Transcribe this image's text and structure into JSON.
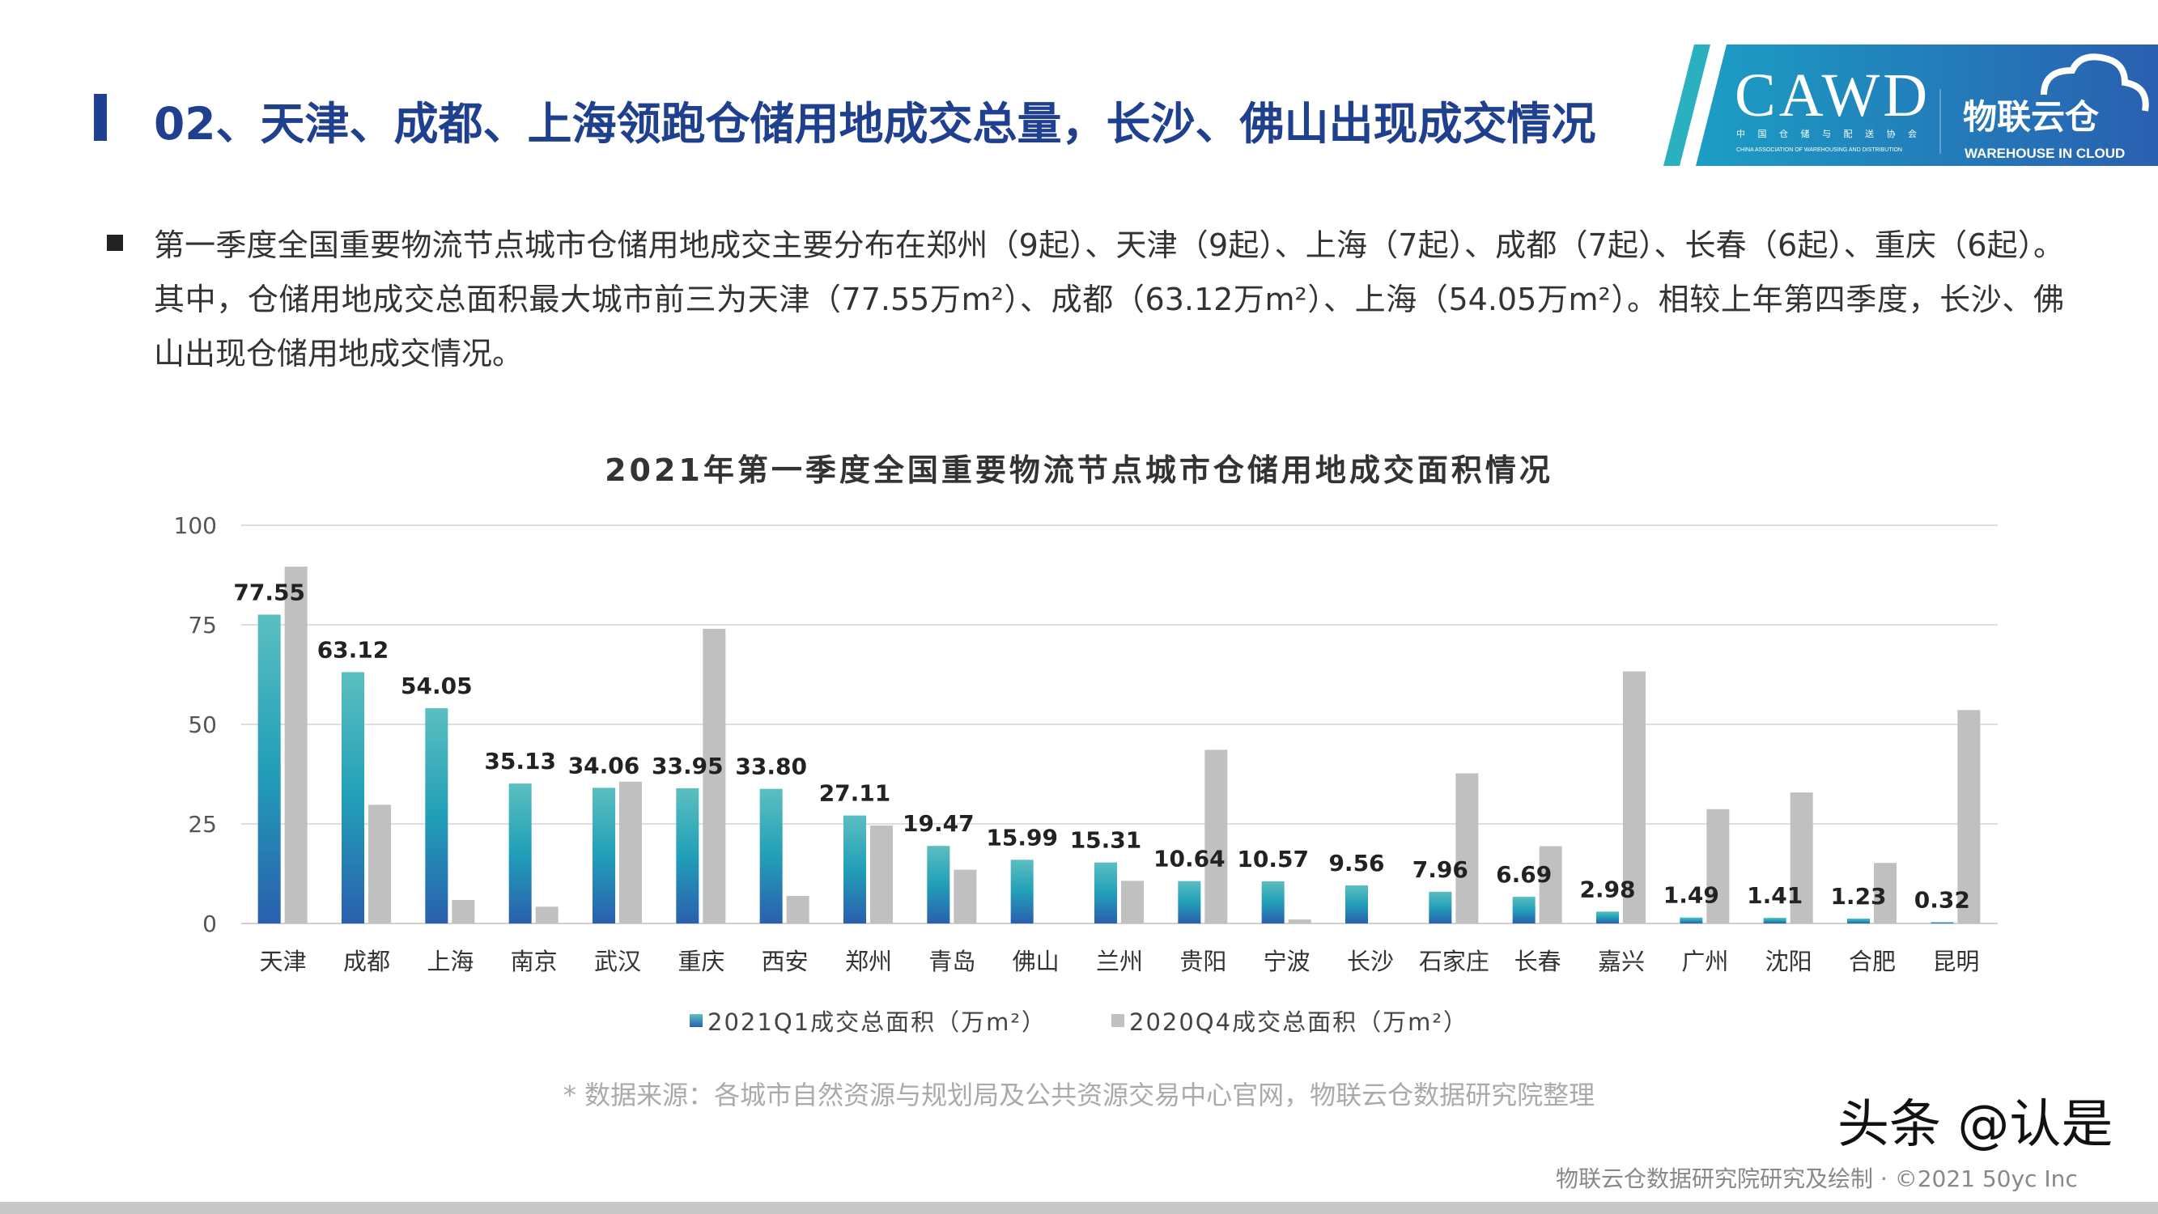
{
  "header": {
    "title": "02、天津、成都、上海领跑仓储用地成交总量，长沙、佛山出现成交情况",
    "title_color": "#1f3f8f",
    "logo": {
      "cawd": "CAWD",
      "cawd_cn": "中 国 仓 储 与 配 送 协 会",
      "cawd_en": "CHINA ASSOCIATION OF WAREHOUSING AND DISTRIBUTION",
      "wic_cn": "物联云仓",
      "wic_en": "WAREHOUSE IN CLOUD"
    }
  },
  "summary": "第一季度全国重要物流节点城市仓储用地成交主要分布在郑州（9起）、天津（9起）、上海（7起）、成都（7起）、长春（6起）、重庆（6起）。其中，仓储用地成交总面积最大城市前三为天津（77.55万m²）、成都（63.12万m²）、上海（54.05万m²）。相较上年第四季度，长沙、佛山出现仓储用地成交情况。",
  "chart_data": {
    "type": "bar",
    "title": "2021年第一季度全国重要物流节点城市仓储用地成交面积情况",
    "categories": [
      "天津",
      "成都",
      "上海",
      "南京",
      "武汉",
      "重庆",
      "西安",
      "郑州",
      "青岛",
      "佛山",
      "兰州",
      "贵阳",
      "宁波",
      "长沙",
      "石家庄",
      "长春",
      "嘉兴",
      "广州",
      "沈阳",
      "合肥",
      "昆明"
    ],
    "series": [
      {
        "name": "2021Q1成交总面积（万m²）",
        "color": "#2a9fb8",
        "values": [
          77.55,
          63.12,
          54.05,
          35.13,
          34.06,
          33.95,
          33.8,
          27.11,
          19.47,
          15.99,
          15.31,
          10.64,
          10.57,
          9.56,
          7.96,
          6.69,
          2.98,
          1.49,
          1.41,
          1.23,
          0.32
        ],
        "labels": [
          "77.55",
          "63.12",
          "54.05",
          "35.13",
          "34.06",
          "33.95",
          "33.80",
          "27.11",
          "19.47",
          "15.99",
          "15.31",
          "10.64",
          "10.57",
          "9.56",
          "7.96",
          "6.69",
          "2.98",
          "1.49",
          "1.41",
          "1.23",
          "0.32"
        ]
      },
      {
        "name": "2020Q4成交总面积（万m²）",
        "color": "#c0c0c0",
        "values": [
          89.6,
          29.8,
          5.9,
          4.2,
          35.6,
          74.0,
          6.9,
          24.6,
          13.5,
          0,
          10.7,
          43.6,
          1.0,
          0,
          37.7,
          19.4,
          63.3,
          28.7,
          32.9,
          15.2,
          53.6
        ]
      }
    ],
    "ylim": [
      0,
      100
    ],
    "yticks": [
      0,
      25,
      50,
      75,
      100
    ],
    "grid": true,
    "legend": "bottom"
  },
  "source_note": "* 数据来源：各城市自然资源与规划局及公共资源交易中心官网，物联云仓数据研究院整理",
  "footer": "物联云仓数据研究院研究及绘制 · ©2021 50yc Inc",
  "watermark": "头条 @认是"
}
